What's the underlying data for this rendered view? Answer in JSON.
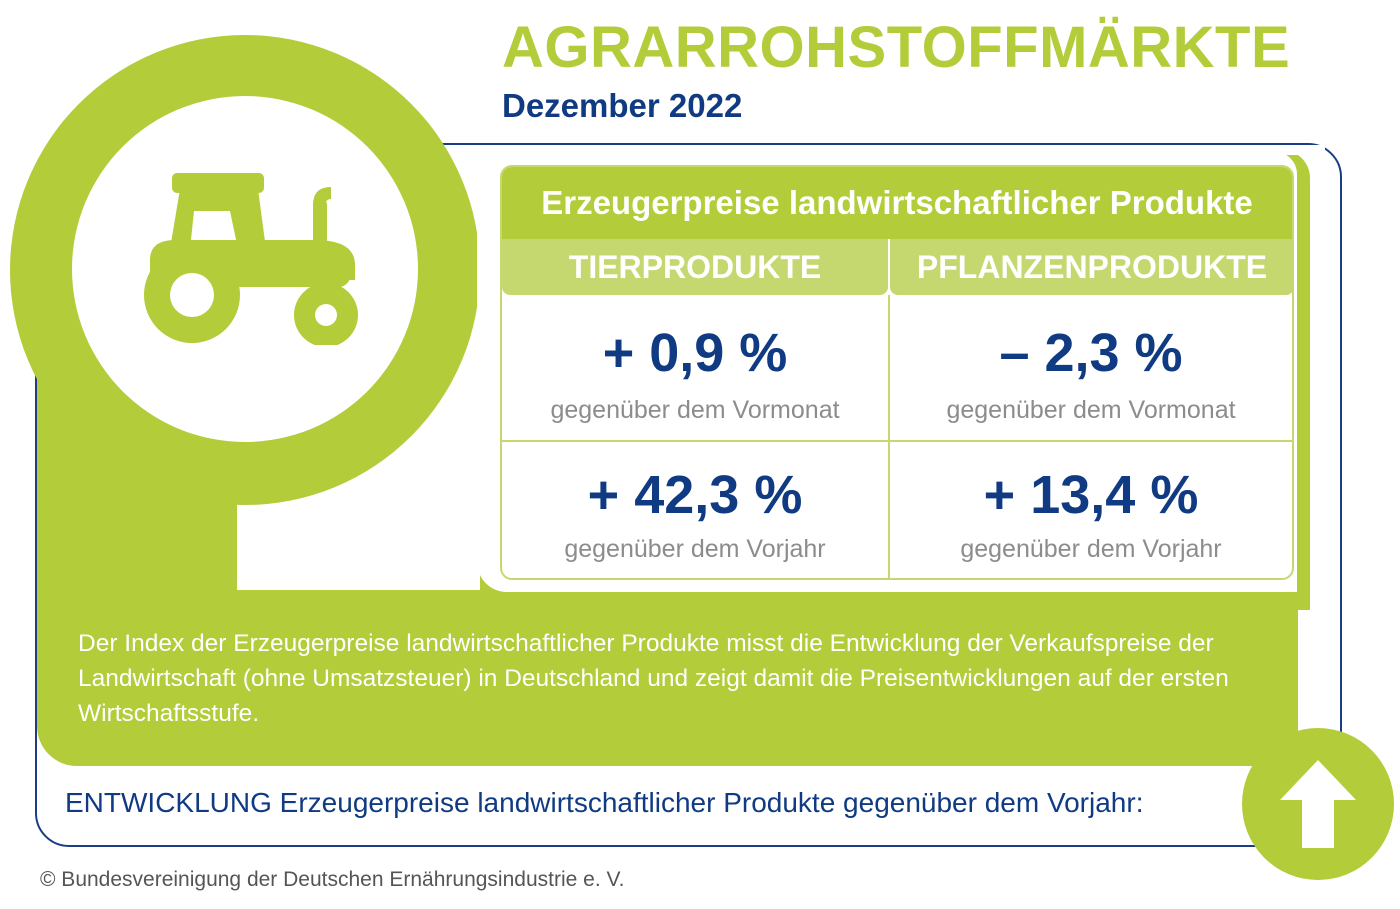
{
  "header": {
    "title": "AGRARROHSTOFFMÄRKTE",
    "subtitle": "Dezember 2022"
  },
  "table": {
    "title": "Erzeugerpreise landwirtschaftlicher Produkte",
    "columns": [
      "TIERPRODUKTE",
      "PFLANZENPRODUKTE"
    ],
    "rows": [
      {
        "values": [
          "+ 0,9 %",
          "– 2,3 %"
        ],
        "caption": "gegenüber dem Vormonat"
      },
      {
        "values": [
          "+ 42,3 %",
          "+ 13,4 %"
        ],
        "caption": "gegenüber dem Vorjahr"
      }
    ]
  },
  "description": "Der Index der Erzeugerpreise landwirtschaftlicher Produkte misst die Entwicklung der Verkaufspreise der Landwirtschaft (ohne Umsatzsteuer) in Deutschland und zeigt damit die Preisentwicklungen auf der ersten Wirtschaftsstufe.",
  "trend": {
    "label": "ENTWICKLUNG Erzeugerpreise landwirtschaftlicher Produkte gegenüber dem Vorjahr:",
    "icon": "arrow-up-icon"
  },
  "icons": {
    "hero": "tractor-icon"
  },
  "colors": {
    "green": "#b2cc3a",
    "light_green": "#c5d86f",
    "navy": "#103a82",
    "gray": "#8c8c8c"
  },
  "footer": {
    "copyright": "© Bundesvereinigung der Deutschen Ernährungsindustrie e. V."
  }
}
